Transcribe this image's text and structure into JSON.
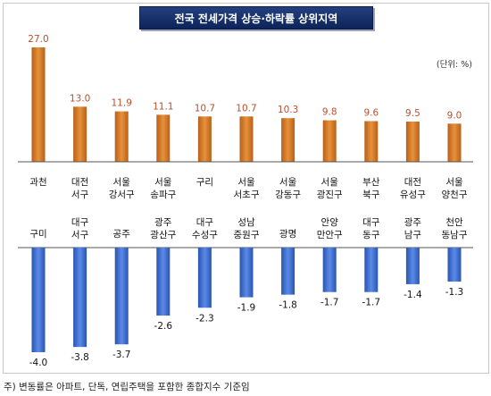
{
  "title": "전국 전세가격 상승·하락률 상위지역",
  "unit_label": "(단위: %)",
  "footnote": "주) 변동률은 아파트, 단독, 연립주택을 포함한 종합지수 기준임",
  "colors": {
    "rise": "#d9822b",
    "fall": "#3366cc",
    "rise_label": "#b8502d",
    "title_bg": "#1a3470"
  },
  "chart_data": [
    {
      "type": "bar",
      "title": "전국 전세가격 상승·하락률 상위지역",
      "categories": [
        [
          "과천"
        ],
        [
          "대전",
          "서구"
        ],
        [
          "서울",
          "강서구"
        ],
        [
          "서울",
          "송파구"
        ],
        [
          "구리"
        ],
        [
          "서울",
          "서초구"
        ],
        [
          "서울",
          "강동구"
        ],
        [
          "서울",
          "광진구"
        ],
        [
          "부산",
          "북구"
        ],
        [
          "대전",
          "유성구"
        ],
        [
          "서울",
          "양천구"
        ]
      ],
      "values": [
        27.0,
        13.0,
        11.9,
        11.1,
        10.7,
        10.7,
        10.3,
        9.8,
        9.6,
        9.5,
        9.0
      ],
      "value_labels": [
        "27.0",
        "13.0",
        "11.9",
        "11.1",
        "10.7",
        "10.7",
        "10.3",
        "9.8",
        "9.6",
        "9.5",
        "9.0"
      ],
      "ylim": [
        0,
        27
      ]
    },
    {
      "type": "bar",
      "categories": [
        [
          "구미"
        ],
        [
          "대구",
          "서구"
        ],
        [
          "공주"
        ],
        [
          "광주",
          "광산구"
        ],
        [
          "대구",
          "수성구"
        ],
        [
          "성남",
          "중원구"
        ],
        [
          "광명"
        ],
        [
          "안양",
          "만안구"
        ],
        [
          "대구",
          "동구"
        ],
        [
          "광주",
          "남구"
        ],
        [
          "천안",
          "동남구"
        ]
      ],
      "values": [
        -4.0,
        -3.8,
        -3.7,
        -2.6,
        -2.3,
        -1.9,
        -1.8,
        -1.7,
        -1.7,
        -1.4,
        -1.3
      ],
      "value_labels": [
        "-4.0",
        "-3.8",
        "-3.7",
        "-2.6",
        "-2.3",
        "-1.9",
        "-1.8",
        "-1.7",
        "-1.7",
        "-1.4",
        "-1.3"
      ],
      "ylim": [
        -4.0,
        0
      ]
    }
  ]
}
